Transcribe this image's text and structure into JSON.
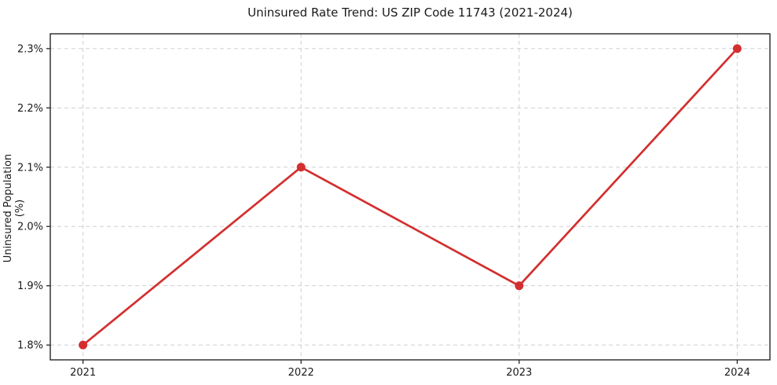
{
  "chart_data": {
    "type": "line",
    "title": "Uninsured Rate Trend: US ZIP Code 11743 (2021-2024)",
    "xlabel": "",
    "ylabel": "Uninsured Population (%)",
    "x": [
      2021,
      2022,
      2023,
      2024
    ],
    "values": [
      1.8,
      2.1,
      1.9,
      2.3
    ],
    "xtick_labels": [
      "2021",
      "2022",
      "2023",
      "2024"
    ],
    "ytick_values": [
      1.8,
      1.9,
      2.0,
      2.1,
      2.2,
      2.3
    ],
    "ytick_labels": [
      "1.8%",
      "1.9%",
      "2.0%",
      "2.1%",
      "2.2%",
      "2.3%"
    ],
    "xlim": [
      2020.85,
      2024.15
    ],
    "ylim": [
      1.775,
      2.325
    ],
    "grid": true,
    "grid_style": "dashed",
    "legend": "none",
    "colors": {
      "line": "#d32f2f",
      "marker": "#d32f2f",
      "grid": "#cfcfcf",
      "spine": "#262626",
      "tick": "#262626",
      "text": "#1a1a1a",
      "background": "#ffffff"
    }
  }
}
